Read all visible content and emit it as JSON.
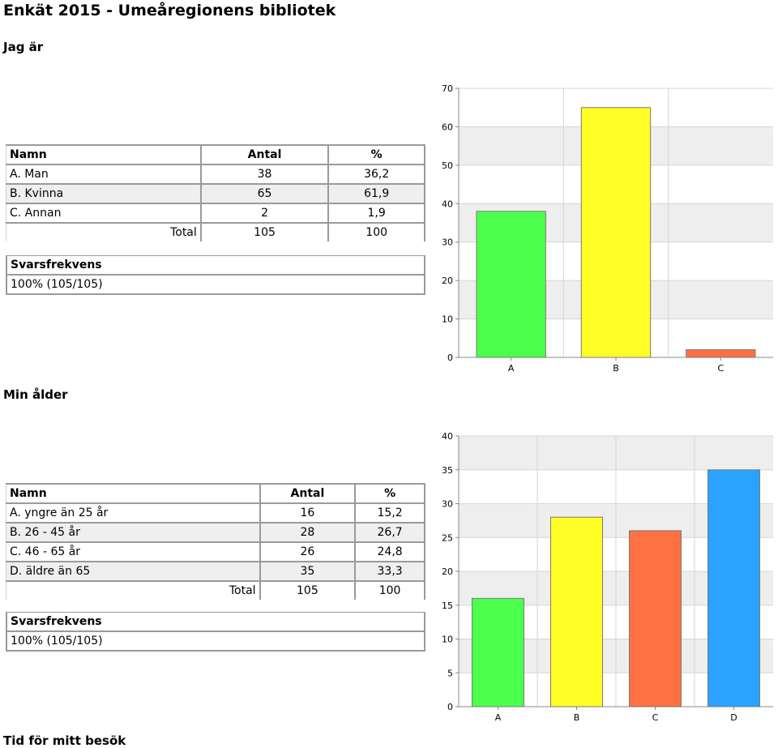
{
  "page_title": "Enkät 2015 - Umeåregionens bibliotek",
  "sections": [
    {
      "heading": "Jag är",
      "table": {
        "headers": {
          "name": "Namn",
          "count": "Antal",
          "percent": "%"
        },
        "rows": [
          {
            "name": "A. Man",
            "count": "38",
            "percent": "36,2"
          },
          {
            "name": "B. Kvinna",
            "count": "65",
            "percent": "61,9"
          },
          {
            "name": "C. Annan",
            "count": "2",
            "percent": "1,9"
          }
        ],
        "total": {
          "label": "Total",
          "count": "105",
          "percent": "100"
        }
      },
      "response_rate": {
        "label": "Svarsfrekvens",
        "value": "100% (105/105)"
      }
    },
    {
      "heading": "Min ålder",
      "table": {
        "headers": {
          "name": "Namn",
          "count": "Antal",
          "percent": "%"
        },
        "rows": [
          {
            "name": "A. yngre än 25 år",
            "count": "16",
            "percent": "15,2"
          },
          {
            "name": "B. 26 - 45 år",
            "count": "28",
            "percent": "26,7"
          },
          {
            "name": "C. 46 - 65 år",
            "count": "26",
            "percent": "24,8"
          },
          {
            "name": "D. äldre än 65",
            "count": "35",
            "percent": "33,3"
          }
        ],
        "total": {
          "label": "Total",
          "count": "105",
          "percent": "100"
        }
      },
      "response_rate": {
        "label": "Svarsfrekvens",
        "value": "100% (105/105)"
      }
    },
    {
      "heading": "Tid för mitt besök"
    }
  ],
  "chart_data": [
    {
      "type": "bar",
      "categories": [
        "A",
        "B",
        "C"
      ],
      "values": [
        38,
        65,
        2
      ],
      "colors": [
        "#4cff4c",
        "#ffff26",
        "#ff7043"
      ],
      "ylim": [
        0,
        70
      ],
      "yticks": [
        0,
        10,
        20,
        30,
        40,
        50,
        60,
        70
      ],
      "grid": true
    },
    {
      "type": "bar",
      "categories": [
        "A",
        "B",
        "C",
        "D"
      ],
      "values": [
        16,
        28,
        26,
        35
      ],
      "colors": [
        "#4cff4c",
        "#ffff26",
        "#ff7043",
        "#29a3ff"
      ],
      "ylim": [
        0,
        40
      ],
      "yticks": [
        0,
        5,
        10,
        15,
        20,
        25,
        30,
        35,
        40
      ],
      "grid": true
    }
  ]
}
